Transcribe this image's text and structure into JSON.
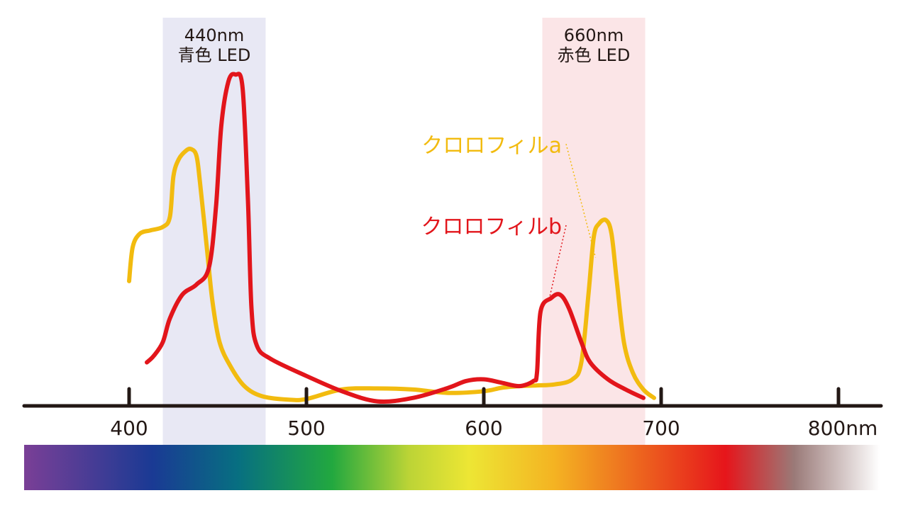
{
  "chart_data": {
    "type": "line",
    "x_unit": "nm",
    "xlim": [
      340,
      830
    ],
    "ylim": [
      0,
      1.0
    ],
    "x_ticks": [
      400,
      500,
      600,
      700,
      800
    ],
    "x_tick_labels": [
      "400",
      "500",
      "600",
      "700",
      "800nm"
    ],
    "bands": [
      {
        "name": "blue-led",
        "center": 440,
        "range": [
          419,
          477
        ],
        "label_line1": "440nm",
        "label_line2": "青色 LED",
        "color": "#e8e8f4"
      },
      {
        "name": "red-led",
        "center": 660,
        "range": [
          633,
          691
        ],
        "label_line1": "660nm",
        "label_line2": "赤色 LED",
        "color": "#fbe5e7"
      }
    ],
    "series": [
      {
        "name": "クロロフィルa",
        "color": "#f2bb0f",
        "label_anchor": [
          636,
          0.74
        ],
        "leader_to": [
          663,
          0.43
        ],
        "points": [
          [
            400,
            0.36
          ],
          [
            402,
            0.46
          ],
          [
            406,
            0.5
          ],
          [
            412,
            0.51
          ],
          [
            419,
            0.52
          ],
          [
            423,
            0.55
          ],
          [
            425,
            0.67
          ],
          [
            428,
            0.72
          ],
          [
            432,
            0.745
          ],
          [
            435,
            0.75
          ],
          [
            438,
            0.73
          ],
          [
            440,
            0.65
          ],
          [
            444,
            0.45
          ],
          [
            447,
            0.3
          ],
          [
            451,
            0.18
          ],
          [
            457,
            0.11
          ],
          [
            465,
            0.05
          ],
          [
            475,
            0.02
          ],
          [
            490,
            0.01
          ],
          [
            500,
            0.012
          ],
          [
            520,
            0.04
          ],
          [
            540,
            0.043
          ],
          [
            560,
            0.04
          ],
          [
            580,
            0.03
          ],
          [
            600,
            0.035
          ],
          [
            610,
            0.045
          ],
          [
            620,
            0.05
          ],
          [
            630,
            0.052
          ],
          [
            640,
            0.055
          ],
          [
            650,
            0.07
          ],
          [
            655,
            0.12
          ],
          [
            659,
            0.32
          ],
          [
            662,
            0.49
          ],
          [
            665,
            0.53
          ],
          [
            669,
            0.54
          ],
          [
            672,
            0.5
          ],
          [
            675,
            0.36
          ],
          [
            679,
            0.18
          ],
          [
            684,
            0.09
          ],
          [
            690,
            0.04
          ],
          [
            696,
            0.015
          ]
        ]
      },
      {
        "name": "クロロフィルb",
        "color": "#e2151b",
        "label_anchor": [
          636,
          0.5
        ],
        "leader_to": [
          637,
          0.31
        ],
        "points": [
          [
            410,
            0.12
          ],
          [
            414,
            0.14
          ],
          [
            419,
            0.18
          ],
          [
            423,
            0.25
          ],
          [
            430,
            0.32
          ],
          [
            438,
            0.35
          ],
          [
            445,
            0.4
          ],
          [
            449,
            0.58
          ],
          [
            452,
            0.82
          ],
          [
            456,
            0.95
          ],
          [
            460,
            0.97
          ],
          [
            464,
            0.93
          ],
          [
            467,
            0.6
          ],
          [
            469,
            0.28
          ],
          [
            472,
            0.17
          ],
          [
            480,
            0.13
          ],
          [
            500,
            0.08
          ],
          [
            520,
            0.035
          ],
          [
            540,
            0.005
          ],
          [
            560,
            0.015
          ],
          [
            580,
            0.045
          ],
          [
            590,
            0.065
          ],
          [
            600,
            0.07
          ],
          [
            610,
            0.06
          ],
          [
            620,
            0.05
          ],
          [
            628,
            0.065
          ],
          [
            630,
            0.09
          ],
          [
            632,
            0.27
          ],
          [
            638,
            0.31
          ],
          [
            643,
            0.32
          ],
          [
            648,
            0.28
          ],
          [
            655,
            0.18
          ],
          [
            660,
            0.12
          ],
          [
            670,
            0.07
          ],
          [
            680,
            0.04
          ],
          [
            690,
            0.015
          ]
        ]
      }
    ]
  },
  "spectrum_colors": [
    "#7a3f96",
    "#1a3a94",
    "#076f81",
    "#22a83f",
    "#bcd436",
    "#ede634",
    "#f4b322",
    "#e6151b",
    "#9a7a78",
    "#ffffff"
  ]
}
